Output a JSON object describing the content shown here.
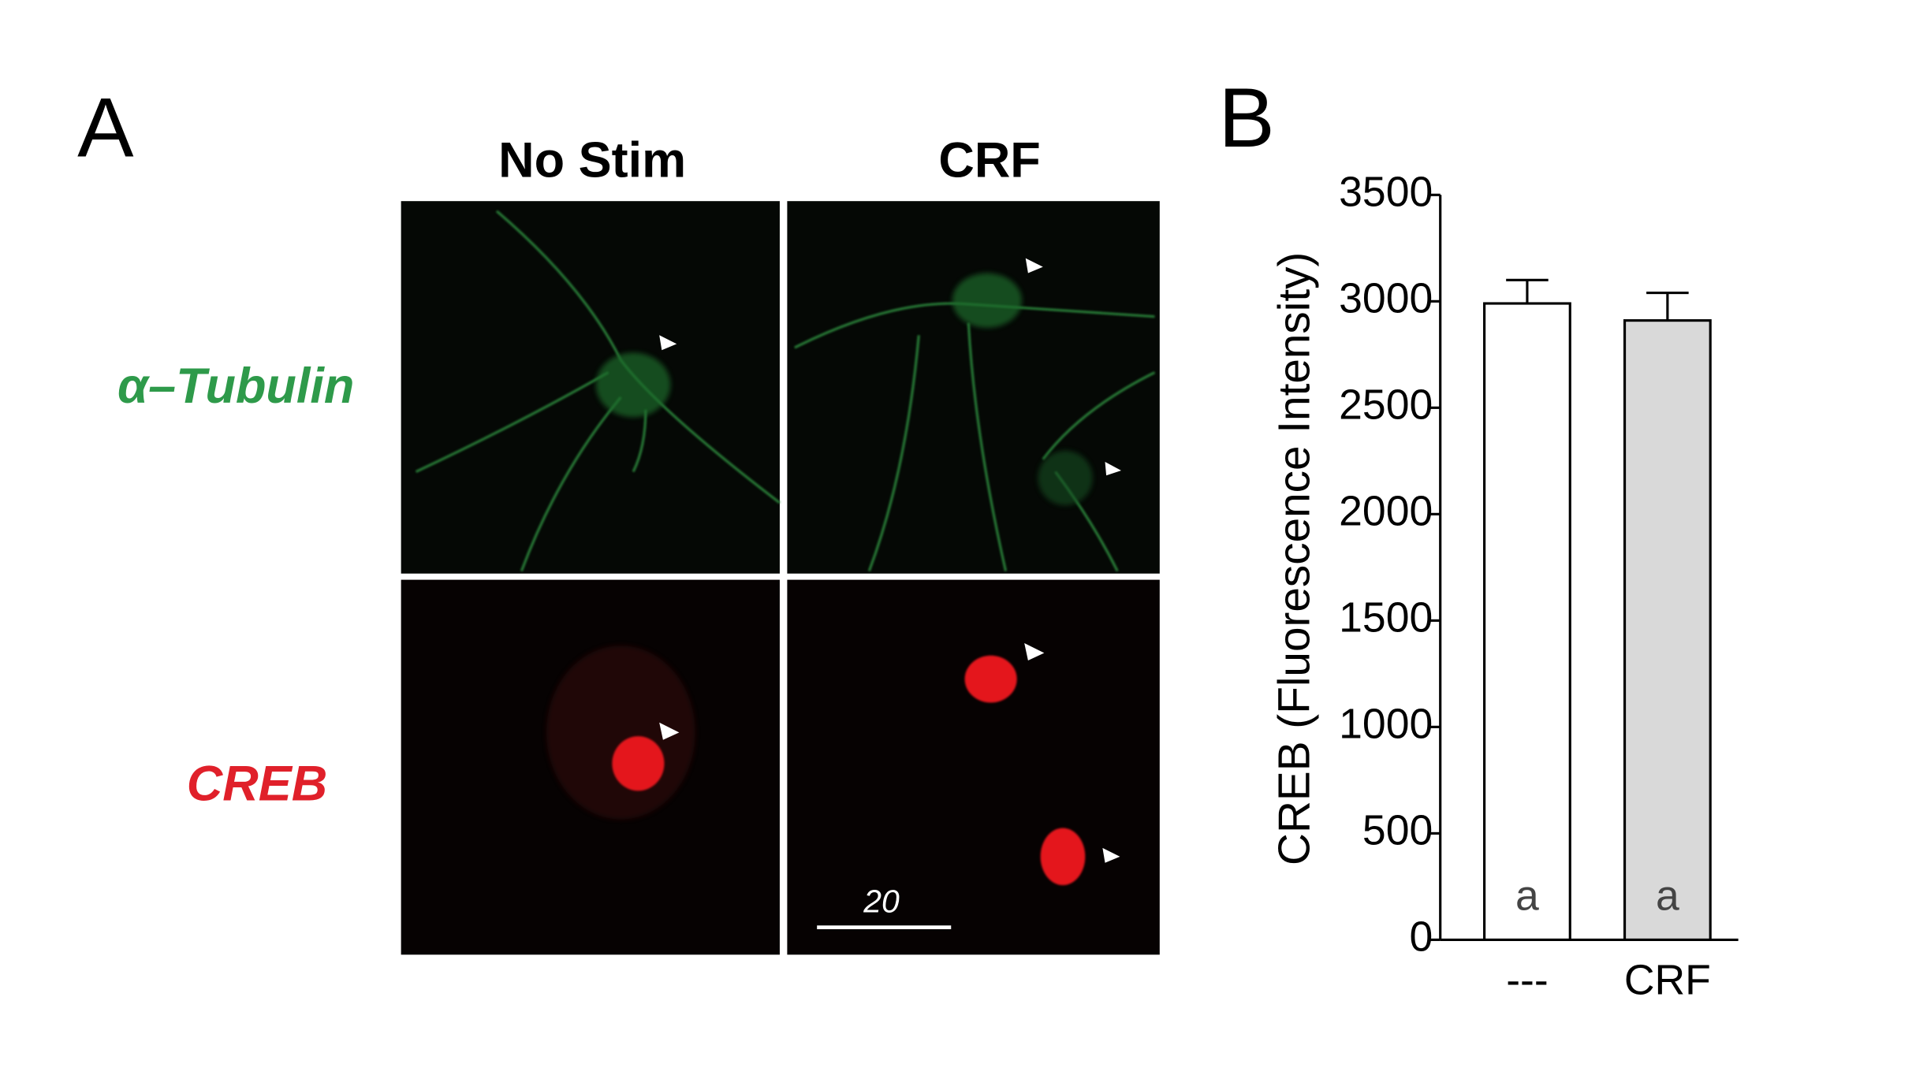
{
  "panel_labels": [
    "A",
    "B"
  ],
  "micrograph": {
    "columns": [
      "No Stim",
      "CRF"
    ],
    "rows": [
      "α–Tubulin",
      "CREB"
    ],
    "scale_bar": "20"
  },
  "chart_data": {
    "type": "bar",
    "ylabel": "CREB (Fluorescence Intensity)",
    "categories": [
      "---",
      "CRF"
    ],
    "series": [
      {
        "values": [
          2990,
          2910
        ],
        "errors": [
          110,
          130
        ],
        "colors": [
          "#ffffff",
          "#d9d9d9"
        ],
        "annotations": [
          "a",
          "a"
        ]
      }
    ],
    "ylim": [
      0,
      3500
    ],
    "yticks": [
      0,
      500,
      1000,
      1500,
      2000,
      2500,
      3000,
      3500
    ],
    "grid": false
  }
}
